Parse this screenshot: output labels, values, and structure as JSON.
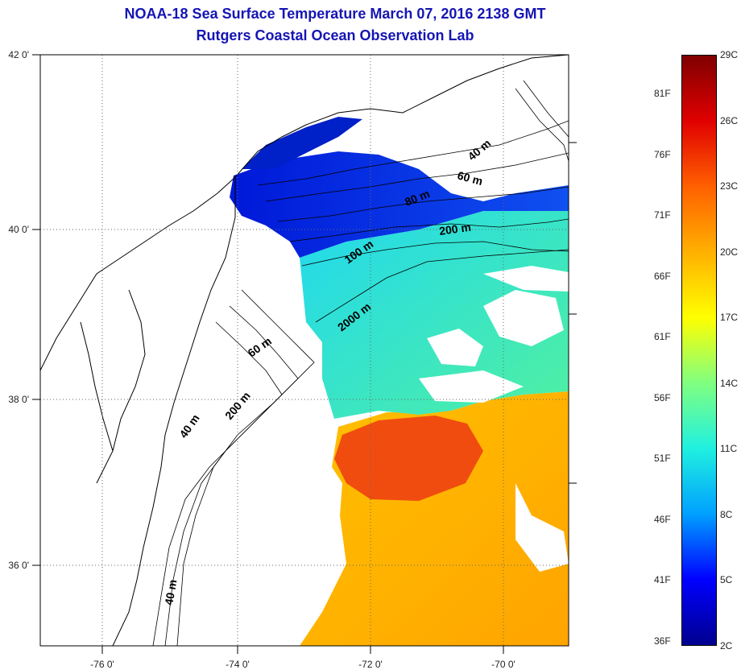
{
  "title": "NOAA-18 Sea Surface Temperature March 07, 2016 2138 GMT",
  "subtitle": "Rutgers Coastal Ocean Observation Lab",
  "map": {
    "lat_labels": [
      "42 0'",
      "40 0'",
      "38 0'",
      "36 0'"
    ],
    "lon_labels": [
      "-76 0'",
      "-74 0'",
      "-72 0'",
      "-70 0'"
    ],
    "contour_labels": [
      "40 m",
      "60 m",
      "80 m",
      "200 m",
      "100 m",
      "2000 m",
      "60 m",
      "200 m",
      "40 m",
      "40 m"
    ]
  },
  "colorbar": {
    "celsius_labels": [
      "29C",
      "26C",
      "23C",
      "20C",
      "17C",
      "14C",
      "11C",
      "8C",
      "5C",
      "2C"
    ],
    "fahrenheit_labels": [
      "81F",
      "76F",
      "71F",
      "66F",
      "61F",
      "56F",
      "51F",
      "46F",
      "41F",
      "36F"
    ],
    "colors": [
      "#00008f",
      "#0000ff",
      "#00a0ff",
      "#20f0e0",
      "#80ff80",
      "#ffff00",
      "#ffb000",
      "#ff6000",
      "#e00000",
      "#800000"
    ]
  }
}
